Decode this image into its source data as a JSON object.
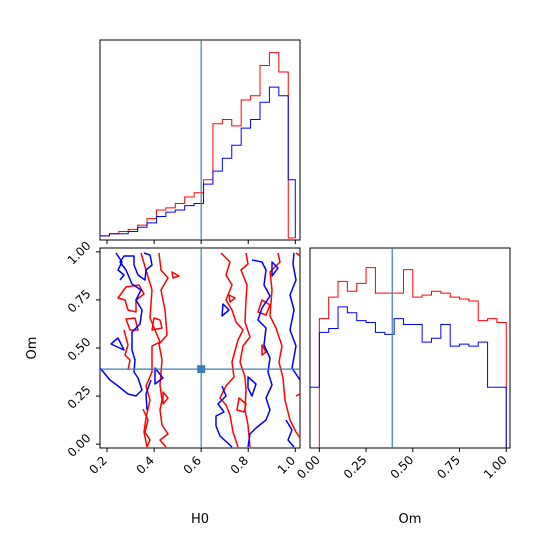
{
  "chart_data": {
    "type": "corner",
    "parameters": [
      "H0",
      "Om"
    ],
    "truth": {
      "H0": 0.6,
      "Om": 0.39
    },
    "truth_color": "#3a7fb5",
    "series": [
      {
        "color": "#ff0000"
      },
      {
        "color": "#0000ff"
      }
    ],
    "panels": [
      {
        "id": "hist-H0",
        "type": "histogram",
        "xlim": [
          0.17,
          1.02
        ],
        "bins": [
          0.17,
          0.21,
          0.25,
          0.29,
          0.33,
          0.37,
          0.41,
          0.45,
          0.49,
          0.53,
          0.57,
          0.61,
          0.65,
          0.69,
          0.73,
          0.77,
          0.81,
          0.85,
          0.89,
          0.93,
          0.97,
          1.0
        ],
        "series_values": [
          [
            0.01,
            0.02,
            0.03,
            0.04,
            0.06,
            0.09,
            0.13,
            0.14,
            0.16,
            0.19,
            0.21,
            0.27,
            0.53,
            0.55,
            0.52,
            0.64,
            0.66,
            0.8,
            0.86,
            0.77,
            0.0
          ],
          [
            0.01,
            0.02,
            0.02,
            0.03,
            0.05,
            0.07,
            0.1,
            0.12,
            0.13,
            0.15,
            0.16,
            0.25,
            0.31,
            0.37,
            0.43,
            0.51,
            0.55,
            0.63,
            0.7,
            0.66,
            0.27
          ]
        ],
        "x_ticks": [
          0.2,
          0.4,
          0.6,
          0.8,
          1.0
        ]
      },
      {
        "id": "contour-H0-Om",
        "type": "contour",
        "xlim": [
          0.17,
          1.02
        ],
        "ylim": [
          -0.02,
          1.02
        ],
        "x_ticks": [
          "0.2",
          "0.4",
          "0.6",
          "0.8",
          "1.0"
        ],
        "y_ticks": [
          "0.00",
          "0.25",
          "0.50",
          "0.75",
          "1.00"
        ]
      },
      {
        "id": "hist-Om",
        "type": "histogram",
        "xlim": [
          -0.05,
          1.02
        ],
        "bins": [
          0.0,
          0.05,
          0.1,
          0.15,
          0.2,
          0.25,
          0.3,
          0.35,
          0.4,
          0.45,
          0.5,
          0.55,
          0.6,
          0.65,
          0.7,
          0.75,
          0.8,
          0.85,
          0.9,
          0.95,
          1.0
        ],
        "series_values": [
          [
            0.66,
            0.77,
            0.85,
            0.8,
            0.84,
            0.92,
            0.79,
            0.79,
            0.79,
            0.91,
            0.77,
            0.78,
            0.8,
            0.79,
            0.77,
            0.76,
            0.75,
            0.65,
            0.66,
            0.64
          ],
          [
            0.59,
            0.61,
            0.72,
            0.69,
            0.65,
            0.64,
            0.59,
            0.58,
            0.66,
            0.63,
            0.63,
            0.54,
            0.56,
            0.63,
            0.52,
            0.53,
            0.52,
            0.54,
            0.31,
            0.31
          ]
        ],
        "x_ticks": [
          "0.00",
          "0.25",
          "0.50",
          "0.75",
          "1.00"
        ]
      }
    ],
    "xlabels": [
      "H0",
      "Om"
    ],
    "ylabel": "Om"
  }
}
